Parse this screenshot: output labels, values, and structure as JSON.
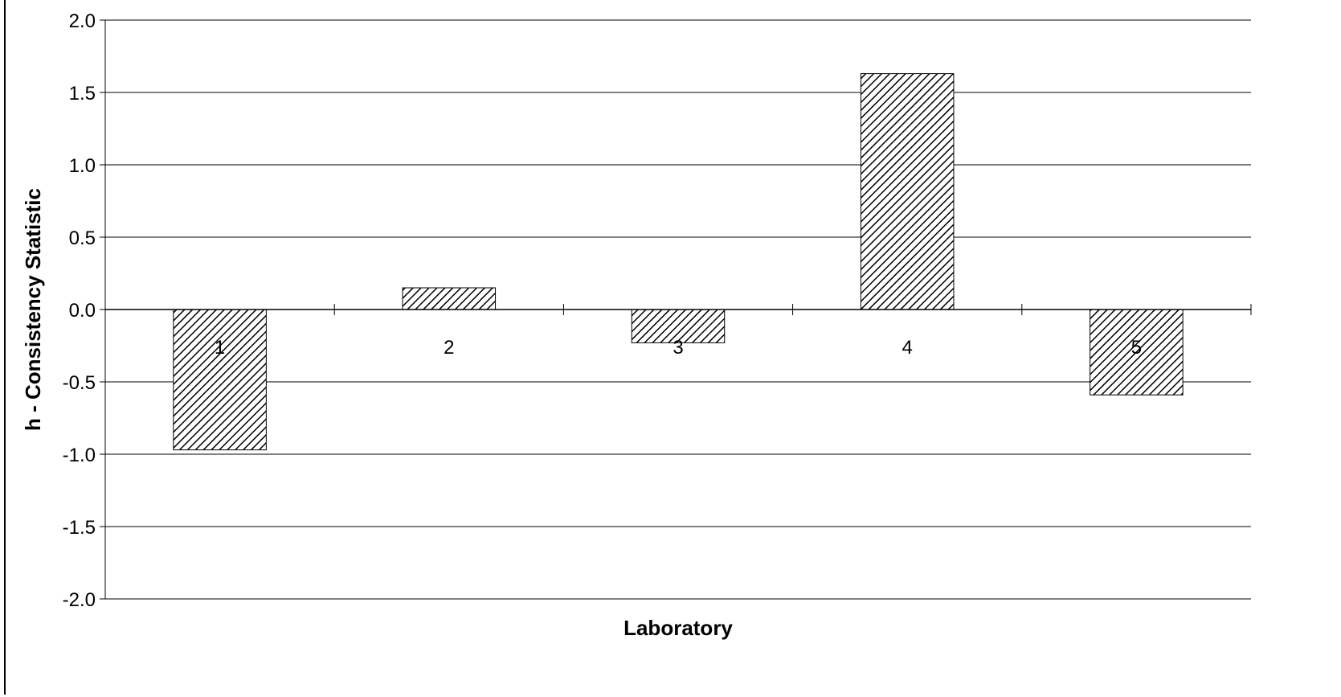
{
  "chart_data": {
    "type": "bar",
    "title": "",
    "xlabel": "Laboratory",
    "ylabel": "h - Consistency Statistic",
    "categories": [
      "1",
      "2",
      "3",
      "4",
      "5"
    ],
    "values": [
      -0.97,
      0.15,
      -0.23,
      1.63,
      -0.59
    ],
    "ylim": [
      -2.0,
      2.0
    ],
    "yticks": [
      "2.0",
      "1.5",
      "1.0",
      "0.5",
      "0.0",
      "-0.5",
      "-1.0",
      "-1.5",
      "-2.0"
    ],
    "ytick_values": [
      2.0,
      1.5,
      1.0,
      0.5,
      0.0,
      -0.5,
      -1.0,
      -1.5,
      -2.0
    ],
    "grid": true,
    "legend": "none",
    "bar_fill": "diagonal-hatch",
    "colors": {
      "bar_stroke": "#000000",
      "hatch": "#000000",
      "grid": "#000000",
      "background": "#ffffff"
    }
  }
}
